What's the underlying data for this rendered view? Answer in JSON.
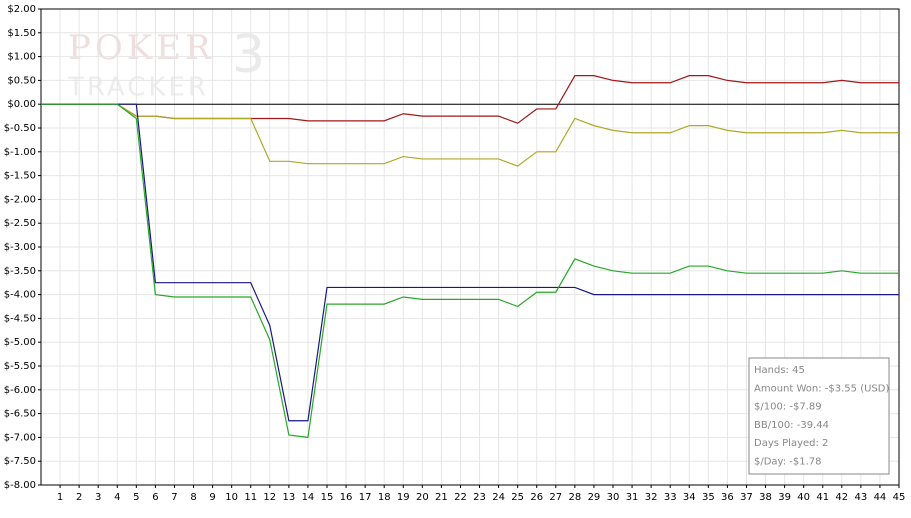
{
  "chart_data": {
    "type": "line",
    "x": [
      0,
      1,
      2,
      3,
      4,
      5,
      6,
      7,
      8,
      9,
      10,
      11,
      12,
      13,
      14,
      15,
      16,
      17,
      18,
      19,
      20,
      21,
      22,
      23,
      24,
      25,
      26,
      27,
      28,
      29,
      30,
      31,
      32,
      33,
      34,
      35,
      36,
      37,
      38,
      39,
      40,
      41,
      42,
      43,
      44,
      45
    ],
    "series": [
      {
        "color": "#a01818",
        "values": [
          0,
          0,
          0,
          0,
          0,
          -0.25,
          -0.25,
          -0.3,
          -0.3,
          -0.3,
          -0.3,
          -0.3,
          -0.3,
          -0.3,
          -0.35,
          -0.35,
          -0.35,
          -0.35,
          -0.35,
          -0.2,
          -0.25,
          -0.25,
          -0.25,
          -0.25,
          -0.25,
          -0.4,
          -0.1,
          -0.1,
          0.6,
          0.6,
          0.5,
          0.45,
          0.45,
          0.45,
          0.6,
          0.6,
          0.5,
          0.45,
          0.45,
          0.45,
          0.45,
          0.45,
          0.5,
          0.45,
          0.45,
          0.45
        ]
      },
      {
        "color": "#b0a828",
        "values": [
          0,
          0,
          0,
          0,
          0,
          -0.25,
          -0.25,
          -0.3,
          -0.3,
          -0.3,
          -0.3,
          -0.3,
          -1.2,
          -1.2,
          -1.25,
          -1.25,
          -1.25,
          -1.25,
          -1.25,
          -1.1,
          -1.15,
          -1.15,
          -1.15,
          -1.15,
          -1.15,
          -1.3,
          -1.0,
          -1.0,
          -0.3,
          -0.45,
          -0.55,
          -0.6,
          -0.6,
          -0.6,
          -0.45,
          -0.45,
          -0.55,
          -0.6,
          -0.6,
          -0.6,
          -0.6,
          -0.6,
          -0.55,
          -0.6,
          -0.6,
          -0.6
        ]
      },
      {
        "color": "#181880",
        "values": [
          0,
          0,
          0,
          0,
          0,
          0,
          -3.75,
          -3.75,
          -3.75,
          -3.75,
          -3.75,
          -3.75,
          -4.65,
          -6.65,
          -6.65,
          -3.85,
          -3.85,
          -3.85,
          -3.85,
          -3.85,
          -3.85,
          -3.85,
          -3.85,
          -3.85,
          -3.85,
          -3.85,
          -3.85,
          -3.85,
          -3.85,
          -4.0,
          -4.0,
          -4.0,
          -4.0,
          -4.0,
          -4.0,
          -4.0,
          -4.0,
          -4.0,
          -4.0,
          -4.0,
          -4.0,
          -4.0,
          -4.0,
          -4.0,
          -4.0,
          -4.0
        ]
      },
      {
        "color": "#28a828",
        "values": [
          0,
          0,
          0,
          0,
          0,
          -0.3,
          -4.0,
          -4.05,
          -4.05,
          -4.05,
          -4.05,
          -4.05,
          -4.95,
          -6.95,
          -7.0,
          -4.2,
          -4.2,
          -4.2,
          -4.2,
          -4.05,
          -4.1,
          -4.1,
          -4.1,
          -4.1,
          -4.1,
          -4.25,
          -3.95,
          -3.95,
          -3.25,
          -3.4,
          -3.5,
          -3.55,
          -3.55,
          -3.55,
          -3.4,
          -3.4,
          -3.5,
          -3.55,
          -3.55,
          -3.55,
          -3.55,
          -3.55,
          -3.5,
          -3.55,
          -3.55,
          -3.55
        ]
      }
    ],
    "xlim": [
      0,
      45
    ],
    "xticks": [
      1,
      2,
      3,
      4,
      5,
      6,
      7,
      8,
      9,
      10,
      11,
      12,
      13,
      14,
      15,
      16,
      17,
      18,
      19,
      20,
      21,
      22,
      23,
      24,
      25,
      26,
      27,
      28,
      29,
      30,
      31,
      32,
      33,
      34,
      35,
      36,
      37,
      38,
      39,
      40,
      41,
      42,
      43,
      44,
      45
    ],
    "ylim": [
      -8,
      2
    ],
    "yticks": [
      {
        "value": 2,
        "label": "$2.00"
      },
      {
        "value": 1.5,
        "label": "$1.50"
      },
      {
        "value": 1,
        "label": "$1.00"
      },
      {
        "value": 0.5,
        "label": "$0.50"
      },
      {
        "value": 0,
        "label": "$0.00"
      },
      {
        "value": -0.5,
        "label": "$-0.50"
      },
      {
        "value": -1,
        "label": "$-1.00"
      },
      {
        "value": -1.5,
        "label": "$-1.50"
      },
      {
        "value": -2,
        "label": "$-2.00"
      },
      {
        "value": -2.5,
        "label": "$-2.50"
      },
      {
        "value": -3,
        "label": "$-3.00"
      },
      {
        "value": -3.5,
        "label": "$-3.50"
      },
      {
        "value": -4,
        "label": "$-4.00"
      },
      {
        "value": -4.5,
        "label": "$-4.50"
      },
      {
        "value": -5,
        "label": "$-5.00"
      },
      {
        "value": -5.5,
        "label": "$-5.50"
      },
      {
        "value": -6,
        "label": "$-6.00"
      },
      {
        "value": -6.5,
        "label": "$-6.50"
      },
      {
        "value": -7,
        "label": "$-7.00"
      },
      {
        "value": -7.5,
        "label": "$-7.50"
      },
      {
        "value": -8,
        "label": "$-8.00"
      }
    ],
    "grid": true,
    "watermark": {
      "line1": "POKER",
      "line2": "TRACKER",
      "badge": "3"
    },
    "stats_box": [
      "Hands: 45",
      "Amount Won: -$3.55 (USD)",
      "$/100: -$7.89",
      "BB/100: -39.44",
      "Days Played: 2",
      "$/Day: -$1.78"
    ]
  }
}
